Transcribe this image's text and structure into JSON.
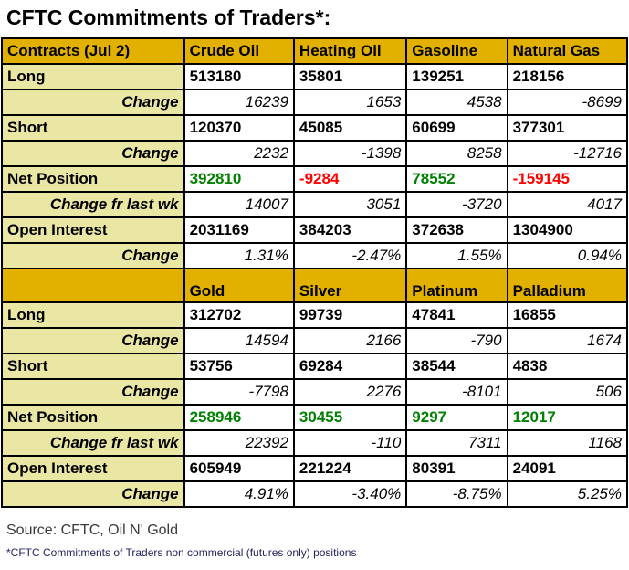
{
  "title": "CFTC Commitments of Traders*:",
  "colors": {
    "header_bg": "#E2B100",
    "label_bg": "#E9E7A3",
    "border": "#000000",
    "net_positive": "#008000",
    "net_negative": "#FF0000",
    "footnote_text": "#23235F"
  },
  "chart_data": {
    "type": "table",
    "title": "CFTC Commitments of Traders*:",
    "sections": [
      {
        "header_label": "Contracts (Jul 2)",
        "columns": [
          "Crude Oil",
          "Heating Oil",
          "Gasoline",
          "Natural Gas"
        ],
        "rows": [
          {
            "label": "Long",
            "kind": "data",
            "values": [
              "513180",
              "35801",
              "139251",
              "218156"
            ]
          },
          {
            "label": "Change",
            "kind": "change",
            "values": [
              "16239",
              "1653",
              "4538",
              "-8699"
            ]
          },
          {
            "label": "Short",
            "kind": "data",
            "values": [
              "120370",
              "45085",
              "60699",
              "377301"
            ]
          },
          {
            "label": "Change",
            "kind": "change",
            "values": [
              "2232",
              "-1398",
              "8258",
              "-12716"
            ]
          },
          {
            "label": "Net Position",
            "kind": "net",
            "values": [
              "392810",
              "-9284",
              "78552",
              "-159145"
            ]
          },
          {
            "label": "Change fr last wk",
            "kind": "changewk",
            "values": [
              "14007",
              "3051",
              "-3720",
              "4017"
            ]
          },
          {
            "label": "Open Interest",
            "kind": "data",
            "values": [
              "2031169",
              "384203",
              "372638",
              "1304900"
            ]
          },
          {
            "label": "Change",
            "kind": "change",
            "values": [
              "1.31%",
              "-2.47%",
              "1.55%",
              "0.94%"
            ]
          }
        ]
      },
      {
        "header_label": "",
        "columns": [
          "Gold",
          "Silver",
          "Platinum",
          "Palladium"
        ],
        "rows": [
          {
            "label": "Long",
            "kind": "data",
            "values": [
              "312702",
              "99739",
              "47841",
              "16855"
            ]
          },
          {
            "label": "Change",
            "kind": "change",
            "values": [
              "14594",
              "2166",
              "-790",
              "1674"
            ]
          },
          {
            "label": "Short",
            "kind": "data",
            "values": [
              "53756",
              "69284",
              "38544",
              "4838"
            ]
          },
          {
            "label": "Change",
            "kind": "change",
            "values": [
              "-7798",
              "2276",
              "-8101",
              "506"
            ]
          },
          {
            "label": "Net Position",
            "kind": "net",
            "values": [
              "258946",
              "30455",
              "9297",
              "12017"
            ]
          },
          {
            "label": "Change fr last wk",
            "kind": "changewk",
            "values": [
              "22392",
              "-110",
              "7311",
              "1168"
            ]
          },
          {
            "label": "Open Interest",
            "kind": "data",
            "values": [
              "605949",
              "221224",
              "80391",
              "24091"
            ]
          },
          {
            "label": "Change",
            "kind": "change",
            "values": [
              "4.91%",
              "-3.40%",
              "-8.75%",
              "5.25%"
            ]
          }
        ]
      }
    ]
  },
  "footer": {
    "source": "Source:  CFTC, Oil N' Gold",
    "footnote": "*CFTC Commitments of Traders non commercial (futures only) positions"
  }
}
